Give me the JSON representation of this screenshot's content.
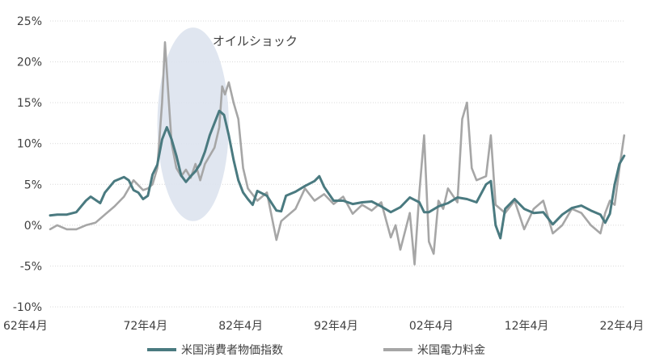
{
  "chart_data": {
    "type": "line",
    "title": "",
    "xlabel": "",
    "ylabel": "",
    "x_range": [
      1962.25,
      2022.6
    ],
    "ylim": [
      -10,
      25
    ],
    "y_ticks": [
      25,
      20,
      15,
      10,
      5,
      0,
      -5,
      -10
    ],
    "y_tick_labels": [
      "25%",
      "20%",
      "15%",
      "10%",
      "5%",
      "0%",
      "-5%",
      "-10%"
    ],
    "x_ticks": [
      1962.25,
      1972.25,
      1982.25,
      1992.25,
      2002.25,
      2012.25,
      2022.25
    ],
    "x_tick_labels": [
      "62年4月",
      "72年4月",
      "82年4月",
      "92年4月",
      "02年4月",
      "12年4月",
      "22年4月"
    ],
    "grid": true,
    "legend_position": "bottom",
    "annotation": {
      "text": "オイルショック",
      "x_range": [
        1973.5,
        1981.0
      ],
      "y_range": [
        0.5,
        24.2
      ]
    },
    "series": [
      {
        "name": "米国消費者物価指数",
        "color": "#4a7a80",
        "x": [
          1962.25,
          1963.0,
          1964.0,
          1965.0,
          1966.0,
          1966.5,
          1967.5,
          1968.0,
          1969.0,
          1970.0,
          1970.5,
          1971.0,
          1971.5,
          1972.0,
          1972.5,
          1973.0,
          1973.5,
          1974.0,
          1974.5,
          1975.0,
          1975.5,
          1976.0,
          1976.5,
          1977.0,
          1977.5,
          1978.0,
          1978.5,
          1979.0,
          1979.5,
          1980.0,
          1980.5,
          1981.0,
          1981.5,
          1982.0,
          1982.5,
          1983.0,
          1983.5,
          1984.0,
          1985.0,
          1986.0,
          1986.5,
          1987.0,
          1988.0,
          1989.0,
          1990.0,
          1990.5,
          1991.0,
          1992.0,
          1993.0,
          1994.0,
          1995.0,
          1996.0,
          1997.0,
          1998.0,
          1999.0,
          2000.0,
          2001.0,
          2001.5,
          2002.0,
          2003.0,
          2004.0,
          2005.0,
          2006.0,
          2007.0,
          2008.0,
          2008.5,
          2009.0,
          2009.5,
          2010.0,
          2011.0,
          2012.0,
          2013.0,
          2014.0,
          2015.0,
          2016.0,
          2017.0,
          2018.0,
          2019.0,
          2020.0,
          2020.5,
          2021.0,
          2021.5,
          2022.0,
          2022.5
        ],
        "y": [
          1.2,
          1.3,
          1.3,
          1.6,
          3.0,
          3.5,
          2.7,
          4.0,
          5.4,
          5.9,
          5.5,
          4.3,
          4.0,
          3.2,
          3.6,
          6.2,
          7.4,
          10.5,
          12.0,
          10.5,
          8.5,
          6.1,
          5.3,
          6.0,
          6.6,
          7.5,
          9.0,
          11.0,
          12.5,
          14.0,
          13.5,
          11.0,
          8.0,
          5.5,
          4.0,
          3.2,
          2.5,
          4.2,
          3.6,
          1.8,
          1.7,
          3.6,
          4.1,
          4.8,
          5.4,
          6.0,
          4.7,
          3.0,
          3.0,
          2.6,
          2.8,
          2.9,
          2.3,
          1.6,
          2.2,
          3.4,
          2.8,
          1.6,
          1.6,
          2.3,
          2.7,
          3.4,
          3.2,
          2.8,
          5.0,
          5.4,
          0.0,
          -1.6,
          2.0,
          3.2,
          2.0,
          1.5,
          1.6,
          0.1,
          1.3,
          2.1,
          2.4,
          1.8,
          1.3,
          0.3,
          1.4,
          5.0,
          7.5,
          8.5
        ]
      },
      {
        "name": "米国電力料金",
        "color": "#a6a6a6",
        "x": [
          1962.25,
          1963.0,
          1964.0,
          1965.0,
          1966.0,
          1967.0,
          1968.0,
          1969.0,
          1970.0,
          1971.0,
          1972.0,
          1972.5,
          1973.0,
          1973.5,
          1974.0,
          1974.3,
          1974.6,
          1975.0,
          1975.5,
          1976.0,
          1976.5,
          1977.0,
          1977.5,
          1978.0,
          1978.5,
          1979.0,
          1979.5,
          1980.0,
          1980.3,
          1980.6,
          1981.0,
          1981.5,
          1982.0,
          1982.5,
          1983.0,
          1984.0,
          1985.0,
          1986.0,
          1986.5,
          1987.0,
          1988.0,
          1989.0,
          1990.0,
          1991.0,
          1992.0,
          1993.0,
          1994.0,
          1995.0,
          1996.0,
          1997.0,
          1998.0,
          1998.5,
          1999.0,
          2000.0,
          2000.5,
          2001.0,
          2001.5,
          2002.0,
          2002.5,
          2003.0,
          2003.5,
          2004.0,
          2005.0,
          2005.5,
          2006.0,
          2006.5,
          2007.0,
          2008.0,
          2008.5,
          2009.0,
          2010.0,
          2011.0,
          2012.0,
          2013.0,
          2014.0,
          2015.0,
          2016.0,
          2017.0,
          2018.0,
          2019.0,
          2020.0,
          2020.5,
          2021.0,
          2021.5,
          2022.0,
          2022.5
        ],
        "y": [
          -0.5,
          0.0,
          -0.5,
          -0.5,
          0.0,
          0.3,
          1.3,
          2.3,
          3.5,
          5.5,
          4.3,
          4.5,
          5.0,
          7.0,
          15.0,
          22.4,
          17.0,
          10.0,
          7.0,
          6.0,
          6.8,
          5.8,
          7.5,
          5.5,
          7.5,
          8.5,
          9.5,
          12.0,
          17.0,
          16.0,
          17.5,
          15.0,
          13.0,
          7.0,
          4.5,
          3.0,
          4.0,
          -1.8,
          0.5,
          1.0,
          2.0,
          4.5,
          3.0,
          3.8,
          2.6,
          3.5,
          1.4,
          2.5,
          1.8,
          2.8,
          -1.5,
          0.0,
          -3.0,
          1.5,
          -4.8,
          4.0,
          11.0,
          -2.0,
          -3.5,
          3.0,
          2.0,
          4.5,
          2.8,
          13.0,
          15.0,
          7.0,
          5.5,
          6.0,
          11.0,
          2.5,
          1.5,
          3.0,
          -0.5,
          2.0,
          3.0,
          -1.0,
          0.0,
          2.0,
          1.5,
          0.0,
          -1.0,
          1.5,
          3.0,
          2.5,
          7.0,
          11.0
        ]
      }
    ]
  }
}
